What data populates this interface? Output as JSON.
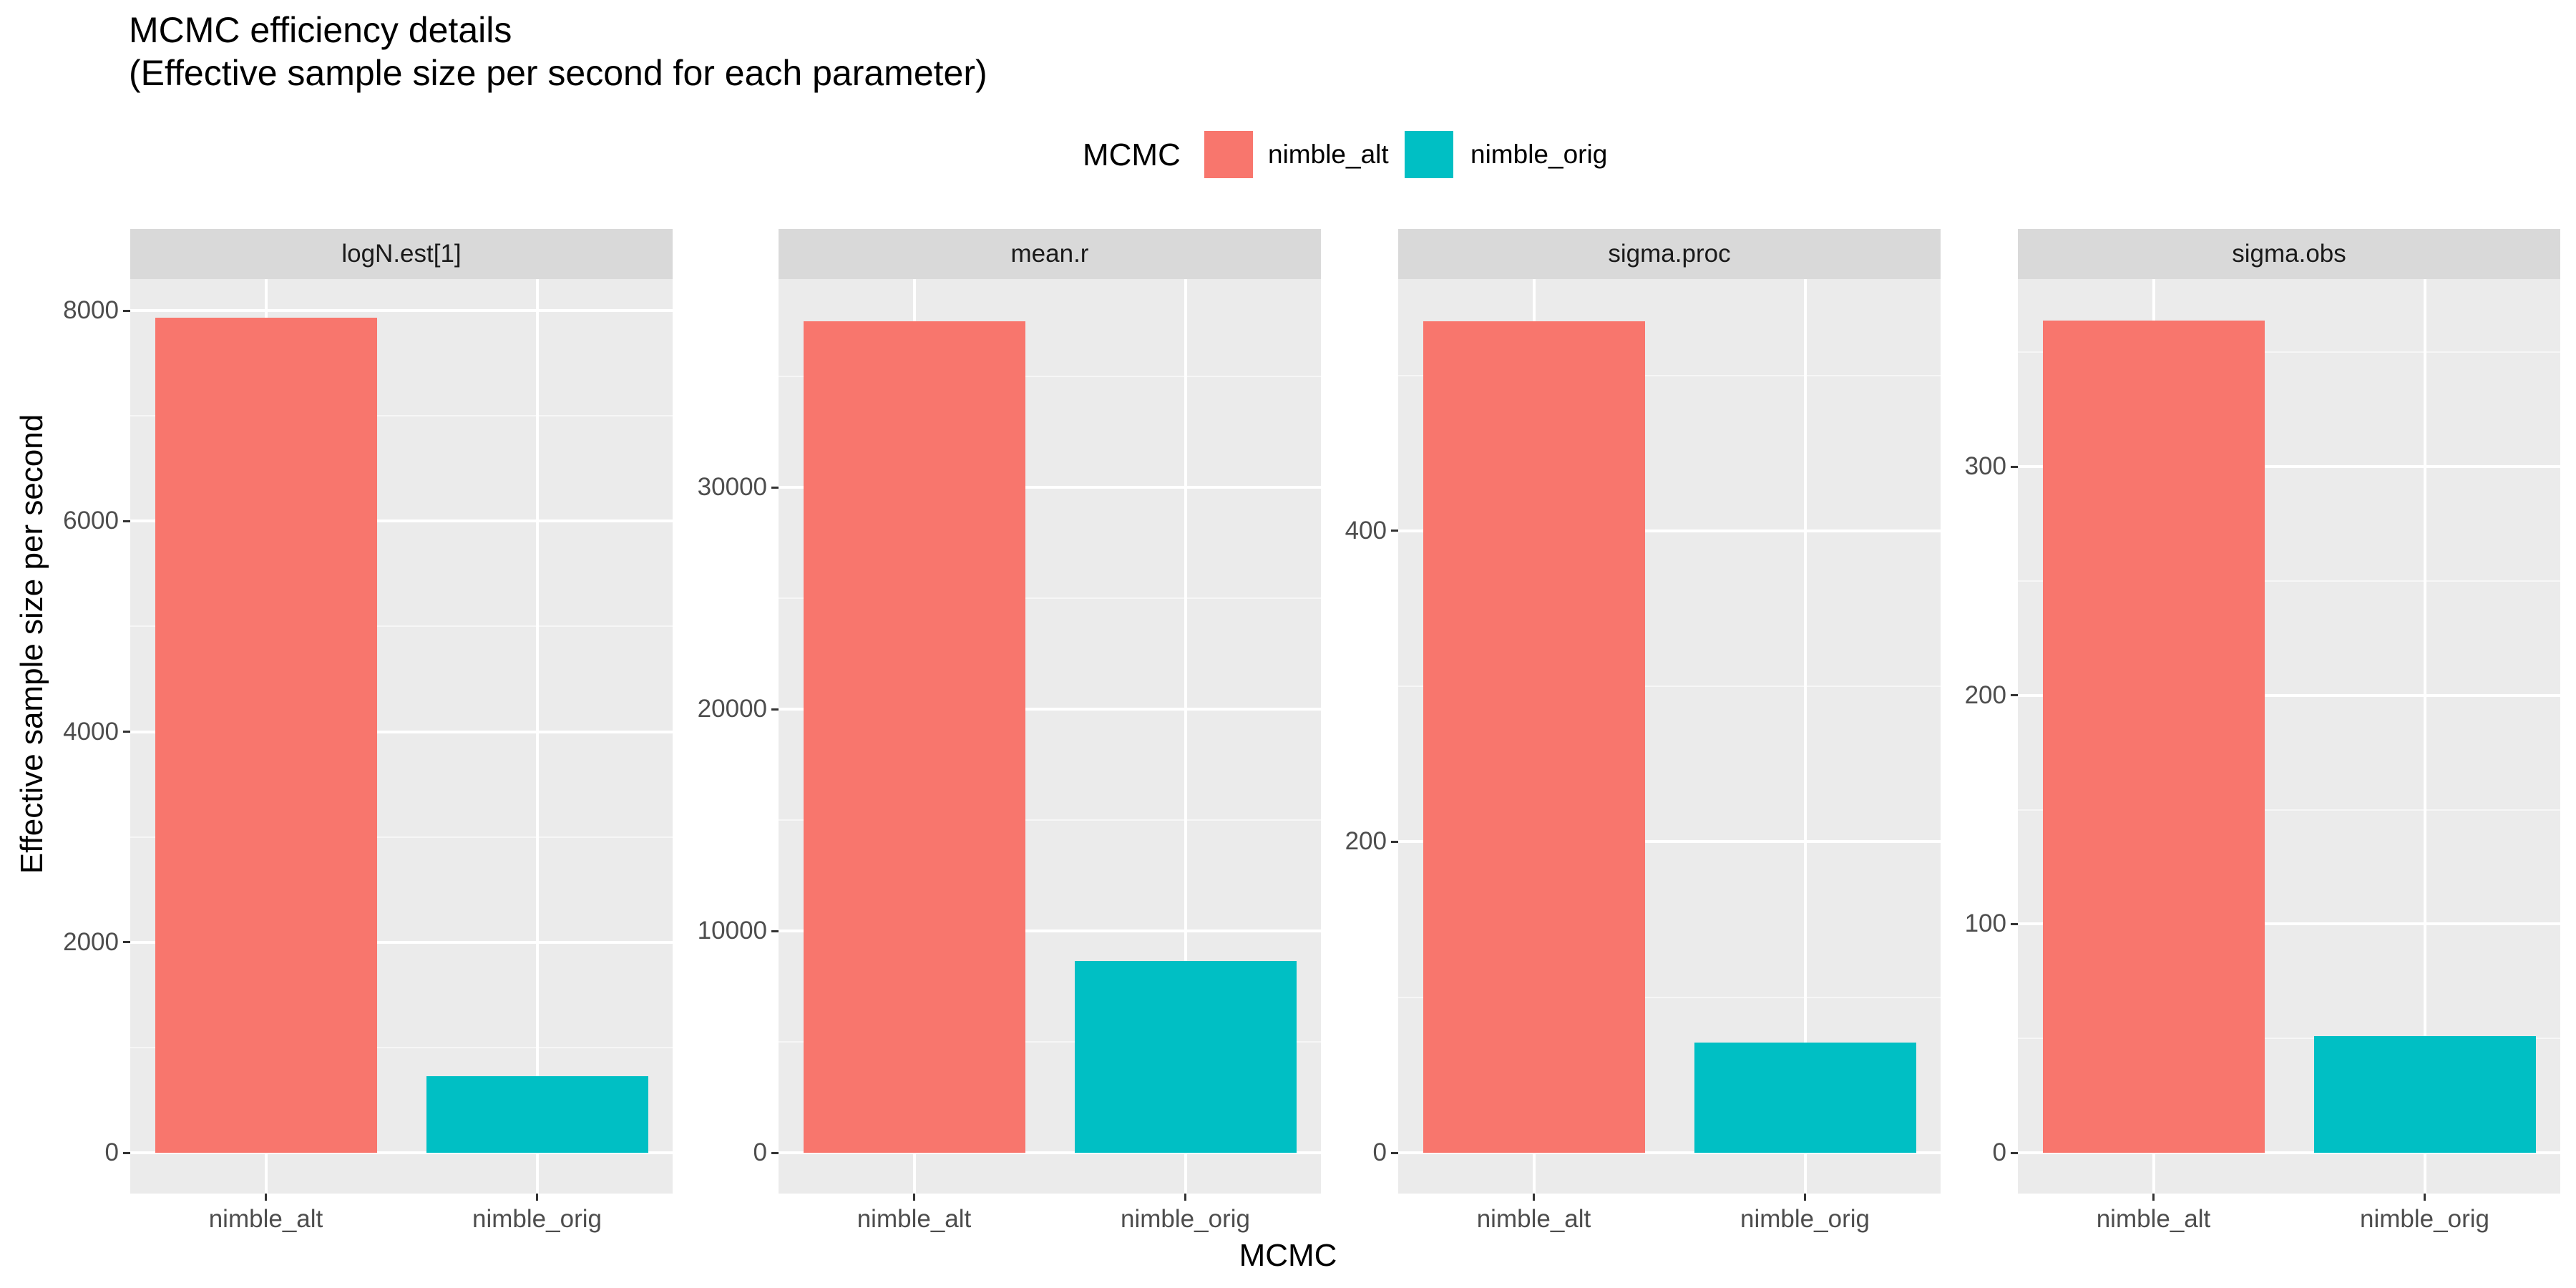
{
  "title_line1": "MCMC efficiency details",
  "title_line2": "(Effective sample size per second for each parameter)",
  "legend": {
    "title": "MCMC",
    "items": [
      {
        "label": "nimble_alt",
        "color": "#F8766D"
      },
      {
        "label": "nimble_orig",
        "color": "#00BFC4"
      }
    ]
  },
  "ylabel": "Effective sample size per second",
  "xlabel": "MCMC",
  "chart_data": [
    {
      "type": "bar",
      "panel": "logN.est[1]",
      "categories": [
        "nimble_alt",
        "nimble_orig"
      ],
      "values": [
        7930,
        730
      ],
      "ylim": [
        0,
        8300
      ],
      "yticks": [
        0,
        2000,
        4000,
        6000,
        8000
      ],
      "ytick_labels": [
        "0",
        "2000",
        "4000",
        "6000",
        "8000"
      ]
    },
    {
      "type": "bar",
      "panel": "mean.r",
      "categories": [
        "nimble_alt",
        "nimble_orig"
      ],
      "values": [
        37500,
        8650
      ],
      "ylim": [
        0,
        39400
      ],
      "yticks": [
        0,
        10000,
        20000,
        30000
      ],
      "ytick_labels": [
        "0",
        "10000",
        "20000",
        "30000"
      ]
    },
    {
      "type": "bar",
      "panel": "sigma.proc",
      "categories": [
        "nimble_alt",
        "nimble_orig"
      ],
      "values": [
        535,
        71
      ],
      "ylim": [
        0,
        562
      ],
      "yticks": [
        0,
        200,
        400
      ],
      "ytick_labels": [
        "0",
        "200",
        "400"
      ]
    },
    {
      "type": "bar",
      "panel": "sigma.obs",
      "categories": [
        "nimble_alt",
        "nimble_orig"
      ],
      "values": [
        364,
        51
      ],
      "ylim": [
        0,
        382
      ],
      "yticks": [
        0,
        100,
        200,
        300
      ],
      "ytick_labels": [
        "0",
        "100",
        "200",
        "300"
      ]
    }
  ]
}
